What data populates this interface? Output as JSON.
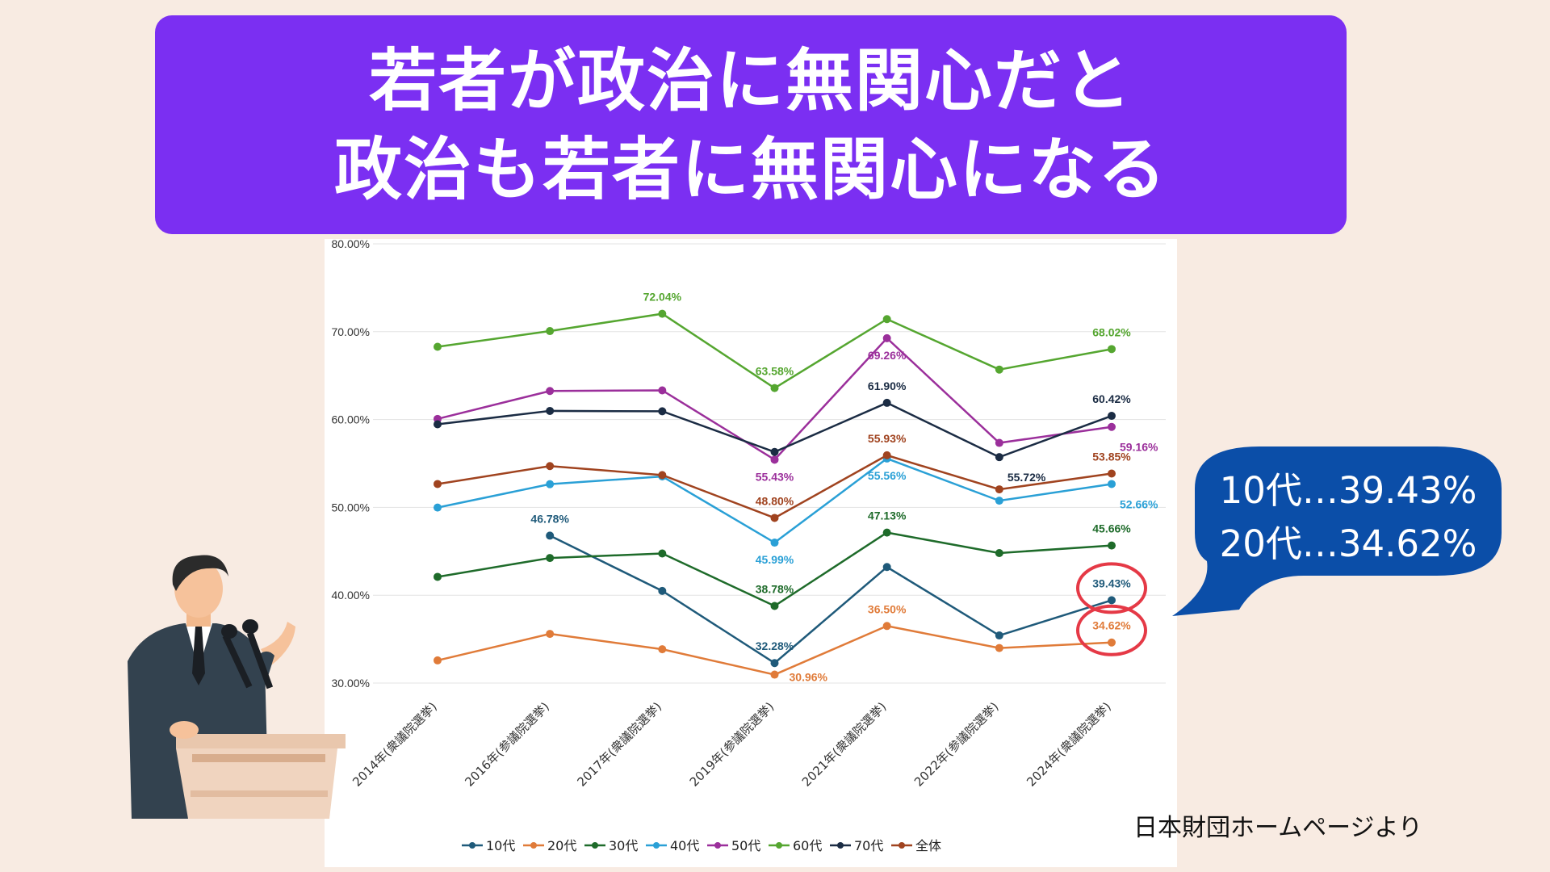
{
  "title": {
    "line1": "若者が政治に無関心だと",
    "line2": "政治も若者に無関心になる"
  },
  "callout": {
    "line1": "10代…39.43%",
    "line2": "20代…34.62%"
  },
  "source": "日本財団ホームページより",
  "colors": {
    "banner": "#7b2ff2",
    "callout": "#0b4ea8",
    "highlight_circle": "#e53946"
  },
  "chart_data": {
    "type": "line",
    "title": "",
    "xlabel": "",
    "ylabel": "",
    "ylim": [
      30,
      80
    ],
    "yticks": [
      "30.00%",
      "40.00%",
      "50.00%",
      "60.00%",
      "70.00%",
      "80.00%"
    ],
    "categories": [
      "2014年(衆議院選挙)",
      "2016年(参議院選挙)",
      "2017年(衆議院選挙)",
      "2019年(参議院選挙)",
      "2021年(衆議院選挙)",
      "2022年(参議院選挙)",
      "2024年(衆議院選挙)"
    ],
    "grid": true,
    "legend": "bottom",
    "series": [
      {
        "name": "10代",
        "color": "#1f5a7a",
        "values": [
          null,
          46.78,
          40.49,
          32.28,
          43.21,
          35.42,
          39.43
        ]
      },
      {
        "name": "20代",
        "color": "#e07b39",
        "values": [
          32.58,
          35.6,
          33.85,
          30.96,
          36.5,
          33.99,
          34.62
        ]
      },
      {
        "name": "30代",
        "color": "#1e6b2a",
        "values": [
          42.09,
          44.24,
          44.75,
          38.78,
          47.13,
          44.8,
          45.66
        ]
      },
      {
        "name": "40代",
        "color": "#2aa0d6",
        "values": [
          49.98,
          52.64,
          53.52,
          45.99,
          55.56,
          50.76,
          52.66
        ]
      },
      {
        "name": "50代",
        "color": "#9b2f9b",
        "values": [
          60.07,
          63.25,
          63.32,
          55.43,
          69.26,
          57.34,
          59.16
        ]
      },
      {
        "name": "60代",
        "color": "#55a630",
        "values": [
          68.28,
          70.07,
          72.04,
          63.58,
          71.43,
          65.69,
          68.02
        ]
      },
      {
        "name": "70代",
        "color": "#1b2c44",
        "values": [
          59.46,
          60.98,
          60.94,
          56.31,
          61.9,
          55.72,
          60.42
        ]
      },
      {
        "name": "全体",
        "color": "#a0431f",
        "values": [
          52.66,
          54.7,
          53.68,
          48.8,
          55.93,
          52.05,
          53.85
        ]
      }
    ],
    "data_labels": [
      {
        "series": "10代",
        "index": 1,
        "text": "46.78%",
        "pos": "above"
      },
      {
        "series": "10代",
        "index": 3,
        "text": "32.28%",
        "pos": "above"
      },
      {
        "series": "10代",
        "index": 6,
        "text": "39.43%",
        "pos": "above"
      },
      {
        "series": "20代",
        "index": 3,
        "text": "30.96%",
        "pos": "right"
      },
      {
        "series": "20代",
        "index": 4,
        "text": "36.50%",
        "pos": "above"
      },
      {
        "series": "20代",
        "index": 6,
        "text": "34.62%",
        "pos": "above"
      },
      {
        "series": "30代",
        "index": 3,
        "text": "38.78%",
        "pos": "above"
      },
      {
        "series": "30代",
        "index": 4,
        "text": "47.13%",
        "pos": "above"
      },
      {
        "series": "30代",
        "index": 6,
        "text": "45.66%",
        "pos": "above"
      },
      {
        "series": "40代",
        "index": 3,
        "text": "45.99%",
        "pos": "below"
      },
      {
        "series": "40代",
        "index": 4,
        "text": "55.56%",
        "pos": "below"
      },
      {
        "series": "40代",
        "index": 6,
        "text": "52.66%",
        "pos": "below-right"
      },
      {
        "series": "50代",
        "index": 3,
        "text": "55.43%",
        "pos": "below"
      },
      {
        "series": "50代",
        "index": 4,
        "text": "69.26%",
        "pos": "below"
      },
      {
        "series": "50代",
        "index": 6,
        "text": "59.16%",
        "pos": "below-right"
      },
      {
        "series": "60代",
        "index": 2,
        "text": "72.04%",
        "pos": "above"
      },
      {
        "series": "60代",
        "index": 3,
        "text": "63.58%",
        "pos": "above"
      },
      {
        "series": "60代",
        "index": 6,
        "text": "68.02%",
        "pos": "above"
      },
      {
        "series": "70代",
        "index": 4,
        "text": "61.90%",
        "pos": "above"
      },
      {
        "series": "70代",
        "index": 5,
        "text": "55.72%",
        "pos": "below-right"
      },
      {
        "series": "70代",
        "index": 6,
        "text": "60.42%",
        "pos": "above"
      },
      {
        "series": "全体",
        "index": 3,
        "text": "48.80%",
        "pos": "above"
      },
      {
        "series": "全体",
        "index": 4,
        "text": "55.93%",
        "pos": "above"
      },
      {
        "series": "全体",
        "index": 6,
        "text": "53.85%",
        "pos": "above"
      }
    ],
    "highlighted": [
      "39.43%",
      "34.62%"
    ]
  }
}
